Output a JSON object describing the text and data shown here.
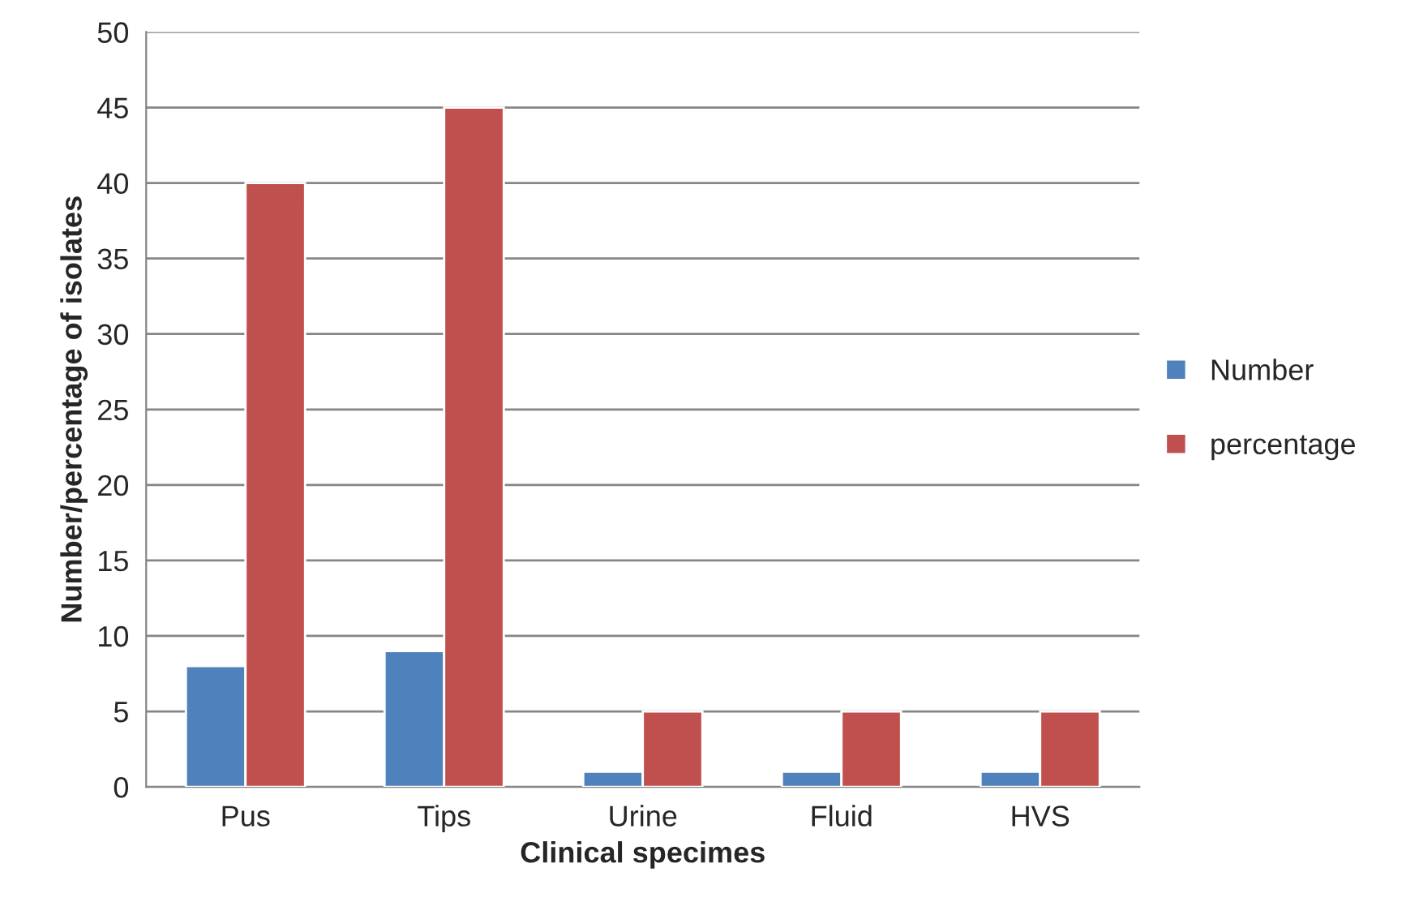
{
  "chart_data": {
    "type": "bar",
    "xlabel": "Clinical specimes",
    "ylabel": "Number/percentage of isolates",
    "categories": [
      "Pus",
      "Tips",
      "Urine",
      "Fluid",
      "HVS"
    ],
    "series": [
      {
        "name": "Number",
        "color": "#4f81bd",
        "values": [
          8,
          9,
          1,
          1,
          1
        ]
      },
      {
        "name": "percentage",
        "color": "#c0504d",
        "values": [
          40,
          45,
          5,
          5,
          5
        ]
      }
    ],
    "ylim": [
      0,
      50
    ],
    "yticks": [
      0,
      5,
      10,
      15,
      20,
      25,
      30,
      35,
      40,
      45,
      50
    ],
    "grid": "y",
    "legend": "right"
  }
}
